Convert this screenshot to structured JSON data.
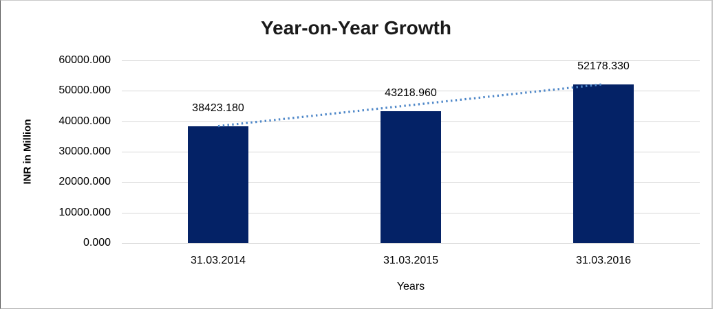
{
  "chart_data": {
    "type": "bar",
    "title": "Year-on-Year Growth",
    "xlabel": "Years",
    "ylabel": "INR in Million",
    "categories": [
      "31.03.2014",
      "31.03.2015",
      "31.03.2016"
    ],
    "values": [
      38423.18,
      43218.96,
      52178.33
    ],
    "value_labels": [
      "38423.180",
      "43218.960",
      "52178.330"
    ],
    "ytick_labels": [
      "60000.000",
      "50000.000",
      "40000.000",
      "30000.000",
      "20000.000",
      "10000.000",
      "0.000"
    ],
    "ylim": [
      0,
      60000
    ],
    "grid": true,
    "legend": "none",
    "trendline": {
      "style": "dotted",
      "description": "linear dotted trendline from first bar top to last bar top"
    },
    "colors": {
      "bar": "#042266",
      "trendline": "#4e87c8",
      "gridline": "#d6d6d6",
      "title_text": "#1a1a1a",
      "axis_text": "#000000"
    }
  }
}
